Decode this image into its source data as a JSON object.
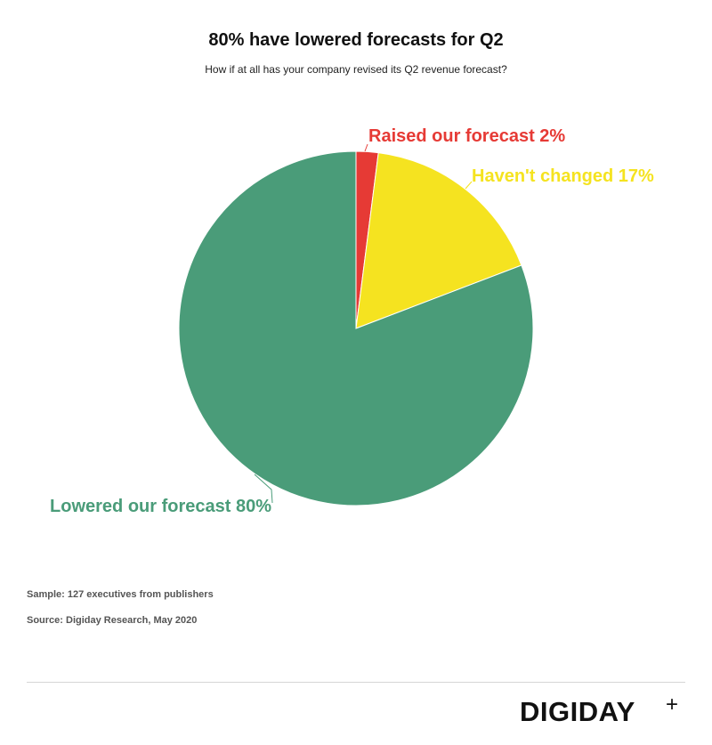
{
  "header": {
    "title": "80% have lowered forecasts for Q2",
    "subtitle": "How if at all has your company revised its Q2 revenue forecast?"
  },
  "chart_data": {
    "type": "pie",
    "title": "80% have lowered forecasts for Q2",
    "subtitle": "How if at all has your company revised its Q2 revenue forecast?",
    "slices": [
      {
        "label": "Raised our forecast",
        "value": 2,
        "display": "Raised our forecast 2%",
        "color": "#e63a35"
      },
      {
        "label": "Haven't changed",
        "value": 17,
        "display": "Haven't changed 17%",
        "color": "#f5e320"
      },
      {
        "label": "Lowered our forecast",
        "value": 80,
        "display": "Lowered our forecast 80%",
        "color": "#4a9c79"
      }
    ],
    "start_angle": "12 o'clock",
    "direction": "clockwise"
  },
  "footer": {
    "sample": "Sample: 127 executives from publishers",
    "source": "Source: Digiday Research, May 2020",
    "brand": "DIGIDAY",
    "brand_mark": "+"
  }
}
